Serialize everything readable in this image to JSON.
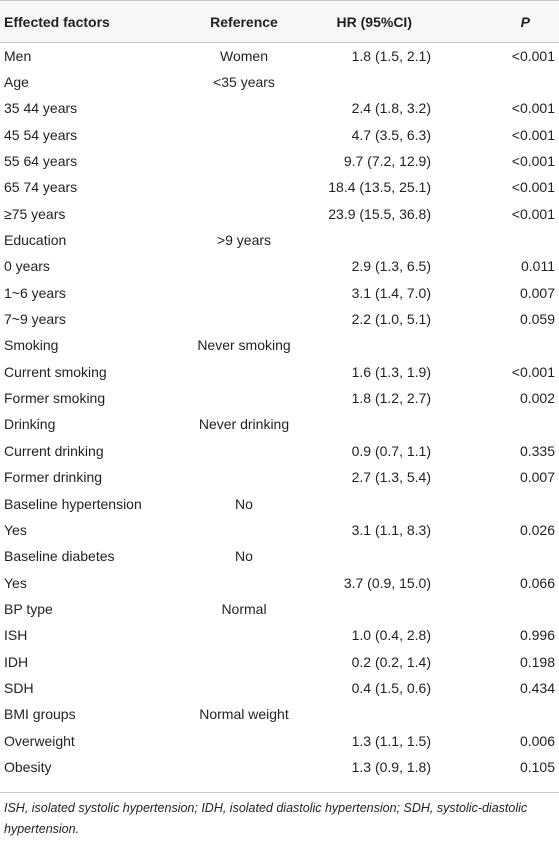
{
  "table": {
    "headers": {
      "factor": "Effected factors",
      "reference": "Reference",
      "hr": "HR (95%CI)",
      "p": "P"
    },
    "rows": [
      {
        "factor": "Men",
        "reference": "Women",
        "hr": "1.8 (1.5, 2.1)",
        "p": "<0.001"
      },
      {
        "factor": "Age",
        "reference": "<35 years",
        "hr": "",
        "p": ""
      },
      {
        "factor": "35 44 years",
        "reference": "",
        "hr": "2.4 (1.8, 3.2)",
        "p": "<0.001"
      },
      {
        "factor": "45 54 years",
        "reference": "",
        "hr": "4.7 (3.5, 6.3)",
        "p": "<0.001"
      },
      {
        "factor": "55 64 years",
        "reference": "",
        "hr": "9.7 (7.2, 12.9)",
        "p": "<0.001"
      },
      {
        "factor": "65 74 years",
        "reference": "",
        "hr": "18.4 (13.5, 25.1)",
        "p": "<0.001"
      },
      {
        "factor": "≥75 years",
        "reference": "",
        "hr": "23.9 (15.5, 36.8)",
        "p": "<0.001"
      },
      {
        "factor": "Education",
        "reference": ">9 years",
        "hr": "",
        "p": ""
      },
      {
        "factor": "0 years",
        "reference": "",
        "hr": "2.9 (1.3, 6.5)",
        "p": "0.011"
      },
      {
        "factor": "1~6 years",
        "reference": "",
        "hr": "3.1 (1.4, 7.0)",
        "p": "0.007"
      },
      {
        "factor": "7~9 years",
        "reference": "",
        "hr": "2.2 (1.0, 5.1)",
        "p": "0.059"
      },
      {
        "factor": "Smoking",
        "reference": "Never smoking",
        "hr": "",
        "p": ""
      },
      {
        "factor": "Current smoking",
        "reference": "",
        "hr": "1.6 (1.3, 1.9)",
        "p": "<0.001"
      },
      {
        "factor": "Former smoking",
        "reference": "",
        "hr": "1.8 (1.2, 2.7)",
        "p": "0.002"
      },
      {
        "factor": "Drinking",
        "reference": "Never drinking",
        "hr": "",
        "p": ""
      },
      {
        "factor": "Current drinking",
        "reference": "",
        "hr": "0.9 (0.7, 1.1)",
        "p": "0.335"
      },
      {
        "factor": "Former drinking",
        "reference": "",
        "hr": "2.7 (1.3, 5.4)",
        "p": "0.007"
      },
      {
        "factor": "Baseline hypertension",
        "reference": "No",
        "hr": "",
        "p": ""
      },
      {
        "factor": "Yes",
        "reference": "",
        "hr": "3.1 (1.1, 8.3)",
        "p": "0.026"
      },
      {
        "factor": "Baseline diabetes",
        "reference": "No",
        "hr": "",
        "p": ""
      },
      {
        "factor": "Yes",
        "reference": "",
        "hr": "3.7 (0.9, 15.0)",
        "p": "0.066"
      },
      {
        "factor": "BP type",
        "reference": "Normal",
        "hr": "",
        "p": ""
      },
      {
        "factor": "ISH",
        "reference": "",
        "hr": "1.0 (0.4, 2.8)",
        "p": "0.996"
      },
      {
        "factor": "IDH",
        "reference": "",
        "hr": "0.2 (0.2, 1.4)",
        "p": "0.198"
      },
      {
        "factor": "SDH",
        "reference": "",
        "hr": "0.4 (1.5, 0.6)",
        "p": "0.434"
      },
      {
        "factor": "BMI groups",
        "reference": "Normal weight",
        "hr": "",
        "p": ""
      },
      {
        "factor": "Overweight",
        "reference": "",
        "hr": "1.3 (1.1, 1.5)",
        "p": "0.006"
      },
      {
        "factor": "Obesity",
        "reference": "",
        "hr": "1.3 (0.9, 1.8)",
        "p": "0.105"
      }
    ]
  },
  "footnote": "ISH, isolated systolic hypertension; IDH, isolated diastolic hypertension; SDH, systolic-diastolic hypertension."
}
